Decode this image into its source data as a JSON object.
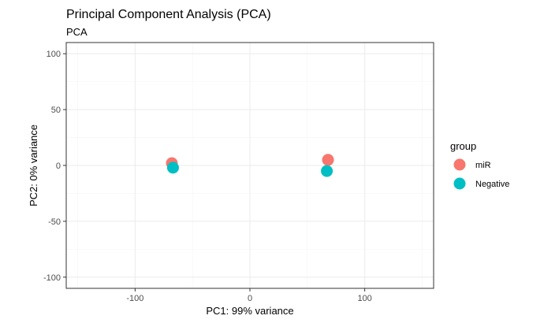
{
  "chart_data": {
    "type": "scatter",
    "title": "Principal Component Analysis (PCA)",
    "subtitle": "PCA",
    "xlabel": "PC1: 99% variance",
    "ylabel": "PC2: 0% variance",
    "xlim": [
      -160,
      160
    ],
    "ylim": [
      -110,
      110
    ],
    "x_ticks": [
      -100,
      0,
      100
    ],
    "y_ticks": [
      -100,
      -50,
      0,
      50,
      100
    ],
    "grid": true,
    "legend": {
      "title": "group",
      "placement": "right"
    },
    "series": [
      {
        "name": "miR",
        "color": "#F8766D",
        "points": [
          {
            "x": -68,
            "y": 2
          },
          {
            "x": 68,
            "y": 5
          }
        ]
      },
      {
        "name": "Negative",
        "color": "#00BFC4",
        "points": [
          {
            "x": -67,
            "y": -2
          },
          {
            "x": 67,
            "y": -5
          }
        ]
      }
    ]
  }
}
